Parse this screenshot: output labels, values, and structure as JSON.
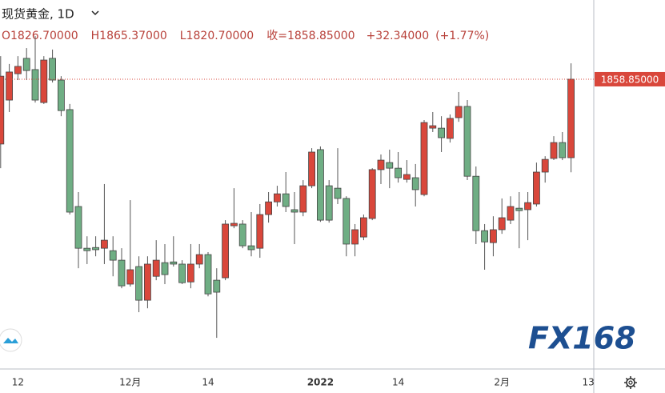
{
  "chart_data": {
    "type": "candlestick",
    "title": "现货黄金, 1D",
    "info": [
      "O1826.70000",
      "H1865.37000",
      "L1820.70000",
      "收=1858.85000",
      "+32.34000",
      "(+1.77%)"
    ],
    "last_price_label": "1858.85000",
    "logo": "FX168",
    "up_color": "#d9473b",
    "down_color": "#6fae84",
    "ylim": [
      1742.1,
      1891.3
    ],
    "categories": [
      null,
      null,
      "12",
      null,
      null,
      null,
      null,
      null,
      null,
      null,
      null,
      null,
      null,
      null,
      null,
      "12月",
      null,
      null,
      null,
      null,
      null,
      null,
      null,
      null,
      "14",
      null,
      null,
      null,
      null,
      null,
      null,
      null,
      null,
      null,
      null,
      null,
      null,
      "2022",
      null,
      null,
      null,
      null,
      null,
      null,
      null,
      null,
      "14",
      null,
      null,
      null,
      null,
      null,
      null,
      null,
      null,
      null,
      null,
      null,
      "2月",
      null,
      null,
      null,
      null,
      null,
      null,
      null,
      null,
      null,
      "13"
    ],
    "open": [
      1832.3,
      1850.3,
      1861.1,
      1867.4,
      1862.8,
      1849.3,
      1867.4,
      1858.5,
      1846.4,
      1806.7,
      1789.6,
      1789.9,
      1789.6,
      1788.6,
      1784.7,
      1774.9,
      1782.1,
      1768.3,
      1778.1,
      1783.7,
      1784.0,
      1783.1,
      1775.8,
      1783.1,
      1787.0,
      1776.5,
      1777.5,
      1798.8,
      1799.5,
      1790.6,
      1789.6,
      1803.4,
      1808.6,
      1811.9,
      1805.4,
      1804.4,
      1815.2,
      1830.0,
      1815.2,
      1814.2,
      1810.0,
      1791.3,
      1794.2,
      1801.8,
      1821.8,
      1824.7,
      1822.4,
      1817.8,
      1818.5,
      1811.6,
      1838.8,
      1838.8,
      1834.6,
      1843.1,
      1847.7,
      1819.1,
      1796.8,
      1791.9,
      1797.2,
      1801.1,
      1806.0,
      1805.4,
      1807.7,
      1820.8,
      1826.4,
      1832.9,
      1826.7,
      null,
      null
    ],
    "high": [
      1868.3,
      1865.1,
      1868.3,
      1871.6,
      1876.5,
      1868.3,
      1871.0,
      1860.1,
      1848.7,
      1812.6,
      1794.5,
      1794.5,
      1815.9,
      1794.5,
      1789.6,
      1809.3,
      1786.3,
      1786.3,
      1792.9,
      1791.3,
      1794.5,
      1784.7,
      1791.3,
      1791.3,
      1788.0,
      1781.4,
      1801.1,
      1814.2,
      1801.1,
      1804.4,
      1807.7,
      1812.6,
      1815.2,
      1820.8,
      1812.6,
      1817.5,
      1830.6,
      1831.3,
      1817.5,
      1830.6,
      1810.9,
      1799.5,
      1803.4,
      1822.4,
      1828.0,
      1830.0,
      1829.0,
      1825.7,
      1824.1,
      1842.1,
      1845.4,
      1843.7,
      1844.4,
      1853.6,
      1850.3,
      1823.1,
      1799.5,
      1802.7,
      1810.0,
      1810.9,
      1812.6,
      1812.6,
      1824.7,
      1827.3,
      1835.5,
      1837.2,
      1865.37,
      null,
      null
    ],
    "low": [
      1822.4,
      1845.4,
      1858.5,
      1858.5,
      1849.3,
      1848.7,
      1857.5,
      1843.7,
      1803.4,
      1781.4,
      1783.1,
      1786.3,
      1783.1,
      1778.1,
      1773.2,
      1773.9,
      1763.4,
      1765.0,
      1776.5,
      1774.9,
      1782.1,
      1774.9,
      1773.2,
      1781.4,
      1769.9,
      1752.9,
      1776.5,
      1797.8,
      1789.6,
      1786.3,
      1785.7,
      1800.1,
      1806.7,
      1804.4,
      1791.3,
      1802.7,
      1814.2,
      1800.4,
      1800.1,
      1807.7,
      1786.3,
      1786.3,
      1792.9,
      1801.1,
      1815.9,
      1814.2,
      1816.5,
      1816.5,
      1806.7,
      1810.9,
      1837.2,
      1829.0,
      1832.9,
      1841.4,
      1817.5,
      1791.3,
      1780.8,
      1786.3,
      1795.5,
      1799.5,
      1789.6,
      1792.9,
      1806.7,
      1816.5,
      1825.7,
      1825.7,
      1820.7,
      null,
      null
    ],
    "close": [
      1860.1,
      1861.8,
      1864.1,
      1862.4,
      1850.3,
      1866.7,
      1858.5,
      1846.0,
      1804.4,
      1789.6,
      1788.6,
      1789.0,
      1792.9,
      1784.7,
      1774.2,
      1780.8,
      1768.3,
      1783.1,
      1784.7,
      1778.8,
      1783.1,
      1775.5,
      1783.1,
      1787.0,
      1770.9,
      1771.6,
      1799.5,
      1799.8,
      1790.6,
      1789.0,
      1803.4,
      1808.6,
      1811.9,
      1806.7,
      1804.4,
      1815.2,
      1829.0,
      1801.1,
      1801.1,
      1810.0,
      1791.3,
      1797.2,
      1802.1,
      1821.8,
      1825.7,
      1822.4,
      1818.5,
      1819.8,
      1813.6,
      1841.1,
      1839.8,
      1834.9,
      1842.8,
      1847.7,
      1819.1,
      1796.8,
      1792.2,
      1797.2,
      1802.1,
      1806.7,
      1805.0,
      1808.3,
      1820.8,
      1826.0,
      1832.9,
      1826.7,
      1858.85,
      null,
      null
    ]
  }
}
